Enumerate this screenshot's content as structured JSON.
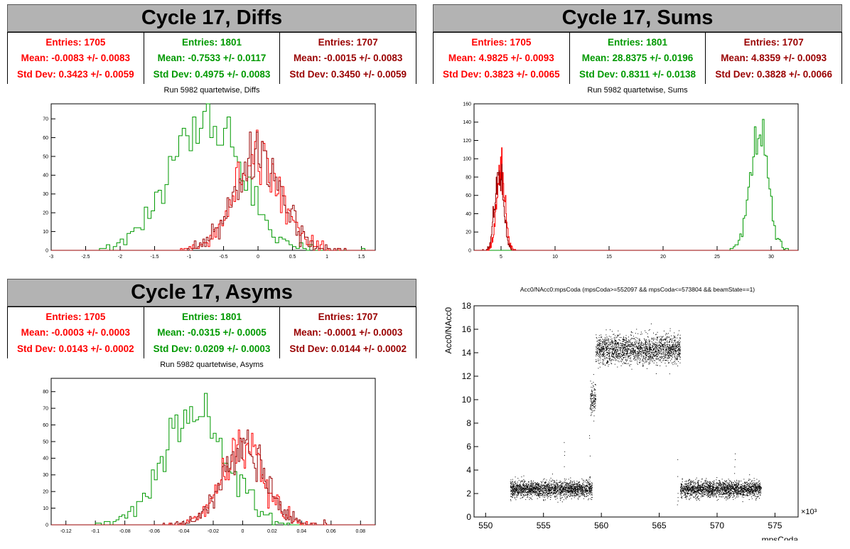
{
  "colors": {
    "s1": "#ff0000",
    "s2": "#009900",
    "s3": "#990000",
    "title_bg": "#b3b3b3"
  },
  "panels": {
    "diffs": {
      "title": "Cycle 17, Diffs",
      "subtitle": "Run 5982 quartetwise, Diffs",
      "stats": [
        {
          "entries": "Entries: 1705",
          "mean": "Mean: -0.0083 +/- 0.0083",
          "std": "Std Dev: 0.3423 +/- 0.0059"
        },
        {
          "entries": "Entries: 1801",
          "mean": "Mean: -0.7533 +/- 0.0117",
          "std": "Std Dev: 0.4975 +/- 0.0083"
        },
        {
          "entries": "Entries: 1707",
          "mean": "Mean: -0.0015 +/- 0.0083",
          "std": "Std Dev: 0.3450 +/- 0.0059"
        }
      ]
    },
    "sums": {
      "title": "Cycle 17, Sums",
      "subtitle": "Run 5982 quartetwise, Sums",
      "stats": [
        {
          "entries": "Entries: 1705",
          "mean": "Mean: 4.9825 +/- 0.0093",
          "std": "Std Dev: 0.3823 +/- 0.0065"
        },
        {
          "entries": "Entries: 1801",
          "mean": "Mean: 28.8375 +/- 0.0196",
          "std": "Std Dev: 0.8311 +/- 0.0138"
        },
        {
          "entries": "Entries: 1707",
          "mean": "Mean: 4.8359 +/- 0.0093",
          "std": "Std Dev: 0.3828 +/- 0.0066"
        }
      ]
    },
    "asyms": {
      "title": "Cycle 17, Asyms",
      "subtitle": "Run 5982 quartetwise, Asyms",
      "stats": [
        {
          "entries": "Entries: 1705",
          "mean": "Mean: -0.0003 +/- 0.0003",
          "std": "Std Dev: 0.0143 +/- 0.0002"
        },
        {
          "entries": "Entries: 1801",
          "mean": "Mean: -0.0315 +/- 0.0005",
          "std": "Std Dev: 0.0209 +/- 0.0003"
        },
        {
          "entries": "Entries: 1707",
          "mean": "Mean: -0.0001 +/- 0.0003",
          "std": "Std Dev: 0.0144 +/- 0.0002"
        }
      ]
    },
    "scatter": {
      "title": "Acc0/NAcc0:mpsCoda (mpsCoda>=552097 && mpsCoda<=573804 && beamState==1)"
    }
  },
  "chart_data": [
    {
      "type": "bar",
      "name": "diffs-histogram",
      "xlim": [
        -3.0,
        1.7
      ],
      "ylim": [
        0,
        78
      ],
      "xticks": [
        -3,
        -2.5,
        -2,
        -1.5,
        -1,
        -0.5,
        0,
        0.5,
        1,
        1.5
      ],
      "xtick_labels": [
        "-3",
        "-2.5",
        "-2",
        "-1.5",
        "-1",
        "-0.5",
        "0",
        "0.5",
        "1",
        "1.5"
      ],
      "yticks": [
        0,
        10,
        20,
        30,
        40,
        50,
        60,
        70
      ],
      "ytick_labels": [
        "0",
        "10",
        "20",
        "30",
        "40",
        "50",
        "60",
        "70"
      ],
      "series": [
        {
          "color": "#009900",
          "mean": -0.7533,
          "std": 0.4975,
          "entries": 1801,
          "bin_width": 0.05
        },
        {
          "color": "#ff0000",
          "mean": -0.0083,
          "std": 0.3423,
          "entries": 1705,
          "bin_width": 0.025
        },
        {
          "color": "#990000",
          "mean": -0.0015,
          "std": 0.345,
          "entries": 1707,
          "bin_width": 0.025
        }
      ]
    },
    {
      "type": "bar",
      "name": "sums-histogram",
      "xlim": [
        2.5,
        32.5
      ],
      "ylim": [
        0,
        160
      ],
      "xticks": [
        5,
        10,
        15,
        20,
        25,
        30
      ],
      "xtick_labels": [
        "5",
        "10",
        "15",
        "20",
        "25",
        "30"
      ],
      "yticks": [
        0,
        20,
        40,
        60,
        80,
        100,
        120,
        140,
        160
      ],
      "ytick_labels": [
        "0",
        "20",
        "40",
        "60",
        "80",
        "100",
        "120",
        "140",
        "160"
      ],
      "series": [
        {
          "color": "#009900",
          "mean": 28.8375,
          "std": 0.8311,
          "entries": 1801,
          "bin_width": 0.15
        },
        {
          "color": "#ff0000",
          "mean": 4.9825,
          "std": 0.3823,
          "entries": 1705,
          "bin_width": 0.05
        },
        {
          "color": "#990000",
          "mean": 4.8359,
          "std": 0.3828,
          "entries": 1707,
          "bin_width": 0.05
        }
      ]
    },
    {
      "type": "bar",
      "name": "asyms-histogram",
      "xlim": [
        -0.13,
        0.09
      ],
      "ylim": [
        0,
        88
      ],
      "xticks": [
        -0.12,
        -0.1,
        -0.08,
        -0.06,
        -0.04,
        -0.02,
        0,
        0.02,
        0.04,
        0.06,
        0.08
      ],
      "xtick_labels": [
        "-0.12",
        "-0.1",
        "-0.08",
        "-0.06",
        "-0.04",
        "-0.02",
        "0",
        "0.02",
        "0.04",
        "0.06",
        "0.08"
      ],
      "yticks": [
        0,
        10,
        20,
        30,
        40,
        50,
        60,
        70,
        80
      ],
      "ytick_labels": [
        "0",
        "10",
        "20",
        "30",
        "40",
        "50",
        "60",
        "70",
        "80"
      ],
      "series": [
        {
          "color": "#009900",
          "mean": -0.0315,
          "std": 0.0209,
          "entries": 1801,
          "bin_width": 0.002
        },
        {
          "color": "#ff0000",
          "mean": -0.0003,
          "std": 0.0143,
          "entries": 1705,
          "bin_width": 0.001
        },
        {
          "color": "#990000",
          "mean": -0.0001,
          "std": 0.0144,
          "entries": 1707,
          "bin_width": 0.001
        }
      ]
    },
    {
      "type": "scatter",
      "name": "acc0-vs-mpscoda",
      "xlabel": "mpsCoda",
      "ylabel": "Acc0/NAcc0",
      "x_multiplier_label": "×10³",
      "xlim": [
        549,
        577
      ],
      "ylim": [
        0,
        18
      ],
      "xticks": [
        550,
        555,
        560,
        565,
        570,
        575
      ],
      "xtick_labels": [
        "550",
        "555",
        "560",
        "565",
        "570",
        "575"
      ],
      "yticks": [
        0,
        2,
        4,
        6,
        8,
        10,
        12,
        14,
        16,
        18
      ],
      "ytick_labels": [
        "0",
        "2",
        "4",
        "6",
        "8",
        "10",
        "12",
        "14",
        "16",
        "18"
      ],
      "clusters": [
        {
          "x_range": [
            552.1,
            559.2
          ],
          "y_center": 2.4,
          "y_spread": 0.35
        },
        {
          "x_range": [
            559.0,
            559.5
          ],
          "y_center": 10.0,
          "y_spread": 0.7
        },
        {
          "x_range": [
            559.5,
            566.8
          ],
          "y_center": 14.3,
          "y_spread": 0.6
        },
        {
          "x_range": [
            566.8,
            573.8
          ],
          "y_center": 2.4,
          "y_spread": 0.35
        }
      ]
    }
  ]
}
